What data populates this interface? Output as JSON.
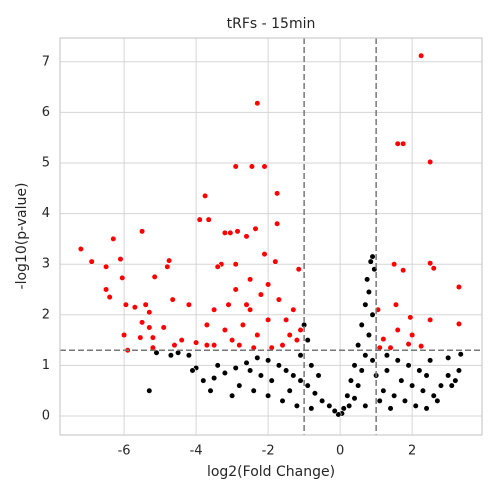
{
  "chart_data": {
    "type": "scatter",
    "title": "tRFs - 15min",
    "xlabel": "log2(Fold Change)",
    "ylabel": "-log10(p-value)",
    "xlim": [
      -7.78,
      3.94
    ],
    "ylim": [
      -0.375,
      7.47
    ],
    "xticks": [
      -6,
      -4,
      -2,
      0,
      2
    ],
    "yticks": [
      0,
      1,
      2,
      3,
      4,
      5,
      6,
      7
    ],
    "grid": true,
    "vlines": [
      -1,
      1
    ],
    "hline": 1.3,
    "threshold_color": "#777777",
    "series": [
      {
        "color": "#000000",
        "x": [
          0.9,
          0.85,
          0.95,
          0.75,
          0.8,
          0.7,
          0.9,
          0.6,
          0.8,
          0.5,
          0.7,
          0.4,
          0.6,
          0.3,
          0.5,
          0.2,
          0.4,
          0.1,
          0.25,
          0.05,
          -0.05,
          -0.15,
          -0.3,
          -0.5,
          -0.7,
          -0.9,
          -1.1,
          -1.3,
          -1.5,
          -1.7,
          -2.0,
          -2.3,
          -2.6,
          -2.9,
          -3.2,
          -3.5,
          -3.8,
          -4.0,
          -4.2,
          -4.5,
          -4.7,
          -5.3,
          -5.1,
          -4.1,
          -3.4,
          -2.8,
          -2.4,
          -2.0,
          -1.6,
          -1.2,
          -0.8,
          -1.0,
          -0.9,
          -1.1,
          -0.8,
          -0.6,
          -1.9,
          -2.2,
          -3.0,
          -3.6,
          -2.5,
          -1.4,
          1.2,
          1.5,
          1.8,
          2.1,
          2.4,
          1.0,
          1.3,
          1.7,
          2.0,
          2.3,
          2.6,
          2.8,
          3.0,
          3.2,
          3.3,
          3.1,
          3.0,
          3.35,
          2.7,
          2.2,
          1.9,
          1.6,
          1.3,
          0.9,
          1.1,
          0.7,
          1.4,
          2.5,
          2.4
        ],
        "values": [
          3.15,
          3.05,
          2.9,
          2.7,
          2.45,
          2.2,
          2.0,
          1.8,
          1.6,
          1.4,
          1.2,
          1.0,
          0.9,
          0.7,
          0.6,
          0.4,
          0.35,
          0.15,
          0.2,
          0.05,
          0.03,
          0.1,
          0.2,
          0.3,
          0.45,
          0.6,
          0.7,
          0.8,
          0.9,
          1.0,
          1.1,
          1.15,
          1.05,
          0.95,
          0.85,
          0.75,
          0.7,
          0.95,
          1.2,
          1.25,
          1.2,
          0.5,
          1.25,
          0.9,
          1.0,
          0.6,
          0.5,
          0.4,
          0.3,
          0.2,
          0.15,
          1.8,
          1.5,
          1.2,
          1.0,
          0.8,
          0.7,
          0.8,
          0.4,
          0.5,
          0.9,
          0.5,
          0.5,
          0.4,
          0.3,
          0.2,
          0.15,
          0.8,
          0.9,
          0.7,
          0.6,
          0.5,
          0.4,
          0.6,
          0.8,
          0.7,
          0.9,
          0.6,
          1.15,
          1.22,
          0.3,
          0.9,
          1.0,
          1.1,
          1.2,
          1.1,
          0.3,
          0.2,
          0.15,
          1.1,
          0.8
        ]
      },
      {
        "color": "#ff0000",
        "x": [
          2.25,
          -2.3,
          2.5,
          1.6,
          1.75,
          -2.9,
          -2.45,
          -2.1,
          -3.9,
          -3.75,
          -3.65,
          -3.2,
          -3.05,
          -2.85,
          -2.6,
          -2.35,
          -1.75,
          -1.75,
          -5.5,
          -6.3,
          -7.2,
          -6.9,
          -6.1,
          -6.5,
          -6.05,
          -6.5,
          -6.4,
          -5.95,
          -5.7,
          -5.4,
          -5.3,
          -5.15,
          -4.8,
          -4.75,
          -4.65,
          -4.2,
          -4.9,
          -5.5,
          -5.3,
          -5.2,
          -5.55,
          -6.0,
          -5.9,
          -5.2,
          -4.6,
          -4.4,
          -4.0,
          -3.7,
          -3.5,
          -3.1,
          -2.9,
          -3.3,
          -3.4,
          -2.9,
          -2.5,
          -2.2,
          -2.0,
          -1.7,
          -1.3,
          -1.5,
          -1.1,
          -1.2,
          -1.6,
          -2.3,
          -2.7,
          -3.0,
          -3.5,
          -2.0,
          -1.8,
          -1.4,
          -2.5,
          -2.1,
          -3.7,
          -1.15,
          3.3,
          3.3,
          2.5,
          2.6,
          1.75,
          1.55,
          1.95,
          2.5,
          2.0,
          1.6,
          1.2,
          1.1,
          1.4,
          1.9,
          2.25,
          1.05,
          1.5,
          -2.6,
          -1.9,
          -2.8,
          -3.2,
          -2.4
        ],
        "values": [
          7.12,
          6.18,
          5.02,
          5.38,
          5.38,
          4.93,
          4.93,
          4.93,
          3.88,
          4.35,
          3.88,
          3.62,
          3.62,
          3.65,
          3.55,
          3.7,
          3.8,
          4.4,
          3.65,
          3.5,
          3.3,
          3.05,
          3.1,
          2.95,
          2.73,
          2.5,
          2.35,
          2.2,
          2.15,
          2.2,
          2.05,
          2.75,
          2.95,
          3.07,
          2.3,
          2.2,
          1.75,
          1.85,
          1.75,
          1.55,
          1.55,
          1.6,
          1.3,
          1.35,
          1.4,
          1.5,
          1.45,
          1.8,
          2.1,
          2.2,
          2.5,
          3.0,
          2.95,
          3.0,
          2.7,
          2.4,
          2.6,
          2.3,
          2.1,
          1.9,
          1.7,
          1.5,
          1.4,
          1.6,
          1.8,
          1.5,
          1.4,
          1.9,
          3.05,
          1.6,
          2.1,
          3.2,
          1.4,
          2.9,
          2.55,
          1.82,
          3.02,
          2.92,
          2.88,
          2.2,
          1.95,
          1.9,
          1.6,
          1.7,
          1.52,
          1.35,
          1.35,
          1.42,
          1.38,
          2.1,
          3.0,
          2.2,
          1.35,
          1.4,
          1.7,
          1.35
        ]
      }
    ]
  }
}
